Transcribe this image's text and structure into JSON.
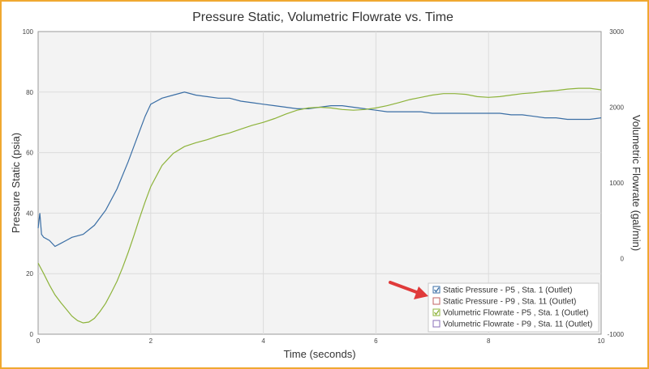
{
  "chart_data": {
    "type": "line",
    "title": "Pressure Static, Volumetric Flowrate vs. Time",
    "xlabel": "Time (seconds)",
    "ylabel_left": "Pressure Static (psia)",
    "ylabel_right": "Volumetric Flowrate (gal/min)",
    "xlim": [
      0,
      10
    ],
    "ylim_left": [
      0,
      100
    ],
    "ylim_right": [
      -1000,
      3000
    ],
    "x_ticks": [
      "0",
      "2",
      "4",
      "6",
      "8",
      "10"
    ],
    "y_left_ticks": [
      "0",
      "20",
      "40",
      "60",
      "80",
      "100"
    ],
    "y_right_ticks": [
      "-1000",
      "0",
      "1000",
      "2000",
      "3000"
    ],
    "grid": true,
    "legend_position": "bottom-right",
    "series": [
      {
        "name": "Static Pressure - P5 , Sta. 1 (Outlet)",
        "axis": "left",
        "checked": true,
        "color": "#3a6ea5",
        "points": [
          [
            0,
            35
          ],
          [
            0.03,
            40
          ],
          [
            0.06,
            33
          ],
          [
            0.1,
            32
          ],
          [
            0.2,
            31
          ],
          [
            0.3,
            29
          ],
          [
            0.4,
            30
          ],
          [
            0.5,
            31
          ],
          [
            0.6,
            32
          ],
          [
            0.8,
            33
          ],
          [
            1.0,
            36
          ],
          [
            1.2,
            41
          ],
          [
            1.4,
            48
          ],
          [
            1.6,
            57
          ],
          [
            1.8,
            67
          ],
          [
            1.9,
            72
          ],
          [
            2.0,
            76
          ],
          [
            2.2,
            78
          ],
          [
            2.4,
            79
          ],
          [
            2.6,
            80
          ],
          [
            2.8,
            79
          ],
          [
            3.0,
            78.5
          ],
          [
            3.2,
            78
          ],
          [
            3.4,
            78
          ],
          [
            3.6,
            77
          ],
          [
            3.8,
            76.5
          ],
          [
            4.0,
            76
          ],
          [
            4.2,
            75.5
          ],
          [
            4.4,
            75
          ],
          [
            4.6,
            74.5
          ],
          [
            4.8,
            74.5
          ],
          [
            5.0,
            75
          ],
          [
            5.2,
            75.5
          ],
          [
            5.4,
            75.5
          ],
          [
            5.6,
            75
          ],
          [
            5.8,
            74.5
          ],
          [
            6.0,
            74
          ],
          [
            6.2,
            73.5
          ],
          [
            6.4,
            73.5
          ],
          [
            6.6,
            73.5
          ],
          [
            6.8,
            73.5
          ],
          [
            7.0,
            73
          ],
          [
            7.2,
            73
          ],
          [
            7.4,
            73
          ],
          [
            7.6,
            73
          ],
          [
            7.8,
            73
          ],
          [
            8.0,
            73
          ],
          [
            8.2,
            73
          ],
          [
            8.4,
            72.5
          ],
          [
            8.6,
            72.5
          ],
          [
            8.8,
            72
          ],
          [
            9.0,
            71.5
          ],
          [
            9.2,
            71.5
          ],
          [
            9.4,
            71
          ],
          [
            9.6,
            71
          ],
          [
            9.8,
            71
          ],
          [
            10.0,
            71.5
          ]
        ]
      },
      {
        "name": "Static Pressure - P9 , Sta. 11 (Outlet)",
        "axis": "left",
        "checked": false,
        "color": "#c06060",
        "points": []
      },
      {
        "name": "Volumetric Flowrate - P5 , Sta. 1 (Outlet)",
        "axis": "right",
        "checked": true,
        "color": "#8db33a",
        "points": [
          [
            0,
            -60
          ],
          [
            0.1,
            -200
          ],
          [
            0.2,
            -350
          ],
          [
            0.3,
            -480
          ],
          [
            0.4,
            -580
          ],
          [
            0.5,
            -670
          ],
          [
            0.6,
            -760
          ],
          [
            0.7,
            -820
          ],
          [
            0.8,
            -850
          ],
          [
            0.9,
            -840
          ],
          [
            1.0,
            -790
          ],
          [
            1.1,
            -700
          ],
          [
            1.2,
            -590
          ],
          [
            1.3,
            -450
          ],
          [
            1.4,
            -300
          ],
          [
            1.5,
            -120
          ],
          [
            1.6,
            80
          ],
          [
            1.7,
            300
          ],
          [
            1.8,
            530
          ],
          [
            1.9,
            750
          ],
          [
            2.0,
            950
          ],
          [
            2.2,
            1230
          ],
          [
            2.4,
            1390
          ],
          [
            2.6,
            1480
          ],
          [
            2.8,
            1530
          ],
          [
            3.0,
            1570
          ],
          [
            3.2,
            1620
          ],
          [
            3.4,
            1660
          ],
          [
            3.6,
            1710
          ],
          [
            3.8,
            1760
          ],
          [
            4.0,
            1800
          ],
          [
            4.2,
            1850
          ],
          [
            4.4,
            1910
          ],
          [
            4.6,
            1960
          ],
          [
            4.8,
            1990
          ],
          [
            5.0,
            2000
          ],
          [
            5.2,
            1990
          ],
          [
            5.4,
            1970
          ],
          [
            5.6,
            1960
          ],
          [
            5.8,
            1970
          ],
          [
            6.0,
            1990
          ],
          [
            6.2,
            2020
          ],
          [
            6.4,
            2060
          ],
          [
            6.6,
            2100
          ],
          [
            6.8,
            2130
          ],
          [
            7.0,
            2160
          ],
          [
            7.2,
            2180
          ],
          [
            7.4,
            2180
          ],
          [
            7.6,
            2170
          ],
          [
            7.8,
            2140
          ],
          [
            8.0,
            2130
          ],
          [
            8.2,
            2140
          ],
          [
            8.4,
            2160
          ],
          [
            8.6,
            2180
          ],
          [
            8.8,
            2190
          ],
          [
            9.0,
            2210
          ],
          [
            9.2,
            2220
          ],
          [
            9.4,
            2240
          ],
          [
            9.6,
            2250
          ],
          [
            9.8,
            2250
          ],
          [
            10.0,
            2230
          ]
        ]
      },
      {
        "name": "Volumetric Flowrate - P9 , Sta. 11 (Outlet)",
        "axis": "right",
        "checked": false,
        "color": "#8a6fb8",
        "points": []
      }
    ],
    "annotation": {
      "type": "arrow",
      "color": "#e03a3a",
      "points_to": "legend"
    }
  }
}
